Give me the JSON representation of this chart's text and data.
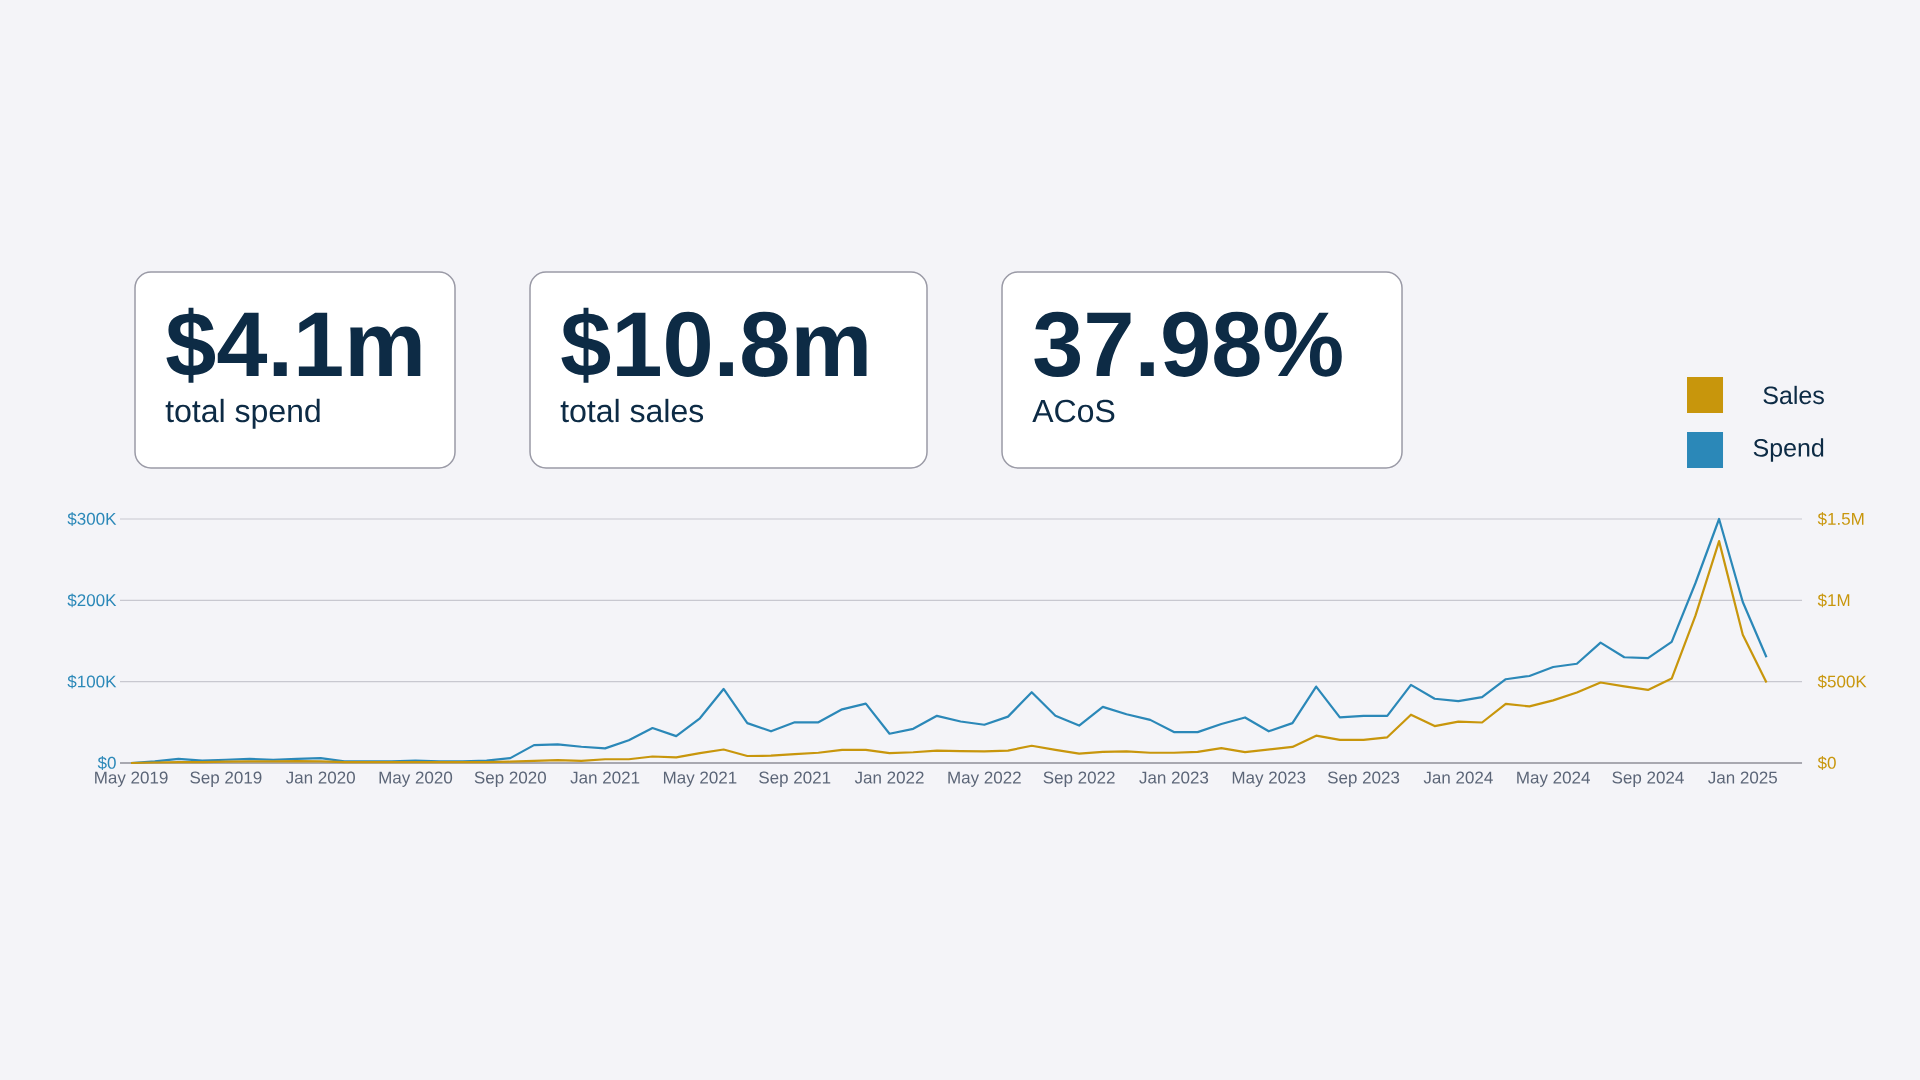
{
  "chart_data": [
    {
      "type": "other",
      "title": "$4.1m",
      "subtitle": "total spend"
    },
    {
      "type": "other",
      "title": "$10.8m",
      "subtitle": "total sales"
    },
    {
      "type": "other",
      "title": "37.98%",
      "subtitle": "ACoS"
    },
    {
      "type": "line",
      "x": [
        "2019-05",
        "2019-06",
        "2019-07",
        "2019-08",
        "2019-09",
        "2019-10",
        "2019-11",
        "2019-12",
        "2020-01",
        "2020-02",
        "2020-03",
        "2020-04",
        "2020-05",
        "2020-06",
        "2020-07",
        "2020-08",
        "2020-09",
        "2020-10",
        "2020-11",
        "2020-12",
        "2021-01",
        "2021-02",
        "2021-03",
        "2021-04",
        "2021-05",
        "2021-06",
        "2021-07",
        "2021-08",
        "2021-09",
        "2021-10",
        "2021-11",
        "2021-12",
        "2022-01",
        "2022-02",
        "2022-03",
        "2022-04",
        "2022-05",
        "2022-06",
        "2022-07",
        "2022-08",
        "2022-09",
        "2022-10",
        "2022-11",
        "2022-12",
        "2023-01",
        "2023-02",
        "2023-03",
        "2023-04",
        "2023-05",
        "2023-06",
        "2023-07",
        "2023-08",
        "2023-09",
        "2023-10",
        "2023-11",
        "2023-12",
        "2024-01",
        "2024-02",
        "2024-03",
        "2024-04",
        "2024-05",
        "2024-06",
        "2024-07",
        "2024-08",
        "2024-09",
        "2024-10",
        "2024-11",
        "2024-12",
        "2025-01",
        "2025-02"
      ],
      "series": [
        {
          "name": "Sales",
          "color": "#c8960c",
          "axis": "y2",
          "values": [
            0,
            3000,
            5000,
            5000,
            8000,
            10000,
            10000,
            12000,
            10000,
            5000,
            5000,
            5000,
            5000,
            5000,
            5000,
            5000,
            8000,
            13000,
            18000,
            13000,
            23000,
            23000,
            40000,
            35000,
            61000,
            83000,
            43000,
            45000,
            55000,
            63000,
            81000,
            81000,
            61000,
            66000,
            76000,
            73000,
            71000,
            76000,
            106000,
            81000,
            58000,
            68000,
            71000,
            63000,
            63000,
            68000,
            91000,
            67000,
            83000,
            99000,
            168000,
            142000,
            142000,
            158000,
            297000,
            227000,
            254000,
            249000,
            364000,
            348000,
            385000,
            433000,
            495000,
            471000,
            449000,
            519000,
            904000,
            1364000,
            789000,
            495000
          ]
        },
        {
          "name": "Spend",
          "color": "#2b88b8",
          "values": [
            0,
            2000,
            5000,
            3000,
            4000,
            5000,
            4000,
            5000,
            6000,
            2000,
            2000,
            2000,
            3000,
            2000,
            2000,
            3000,
            6000,
            22000,
            23000,
            20000,
            18000,
            28000,
            43000,
            33000,
            55000,
            91000,
            49000,
            39000,
            50000,
            50000,
            66000,
            73000,
            36000,
            42000,
            58000,
            51000,
            47000,
            57000,
            87000,
            58000,
            46000,
            69000,
            60000,
            53000,
            38000,
            38000,
            48000,
            56000,
            39000,
            49000,
            94000,
            56000,
            58000,
            58000,
            96000,
            79000,
            76000,
            81000,
            103000,
            107000,
            118000,
            122000,
            148000,
            130000,
            129000,
            149000,
            221000,
            300000,
            198000,
            130000
          ]
        }
      ],
      "xlim": [
        "2019-04-17",
        "2025-03-16"
      ],
      "xticks": [
        {
          "value": "2019-05",
          "label": "May 2019"
        },
        {
          "value": "2019-09",
          "label": "Sep 2019"
        },
        {
          "value": "2020-01",
          "label": "Jan 2020"
        },
        {
          "value": "2020-05",
          "label": "May 2020"
        },
        {
          "value": "2020-09",
          "label": "Sep 2020"
        },
        {
          "value": "2021-01",
          "label": "Jan 2021"
        },
        {
          "value": "2021-05",
          "label": "May 2021"
        },
        {
          "value": "2021-09",
          "label": "Sep 2021"
        },
        {
          "value": "2022-01",
          "label": "Jan 2022"
        },
        {
          "value": "2022-05",
          "label": "May 2022"
        },
        {
          "value": "2022-09",
          "label": "Sep 2022"
        },
        {
          "value": "2023-01",
          "label": "Jan 2023"
        },
        {
          "value": "2023-05",
          "label": "May 2023"
        },
        {
          "value": "2023-09",
          "label": "Sep 2023"
        },
        {
          "value": "2024-01",
          "label": "Jan 2024"
        },
        {
          "value": "2024-05",
          "label": "May 2024"
        },
        {
          "value": "2024-09",
          "label": "Sep 2024"
        },
        {
          "value": "2025-01",
          "label": "Jan 2025"
        }
      ],
      "ylim": [
        0,
        300000
      ],
      "yticks": [
        {
          "value": 0,
          "label": "$0"
        },
        {
          "value": 100000,
          "label": "$100K"
        },
        {
          "value": 200000,
          "label": "$200K"
        },
        {
          "value": 300000,
          "label": "$300K"
        }
      ],
      "y2lim": [
        0,
        1500000
      ],
      "y2ticks": [
        {
          "value": 0,
          "label": "$0"
        },
        {
          "value": 500000,
          "label": "$500K"
        },
        {
          "value": 1000000,
          "label": "$1M"
        },
        {
          "value": 1500000,
          "label": "$1.5M"
        }
      ],
      "grid": "y",
      "legend": "top right"
    }
  ]
}
